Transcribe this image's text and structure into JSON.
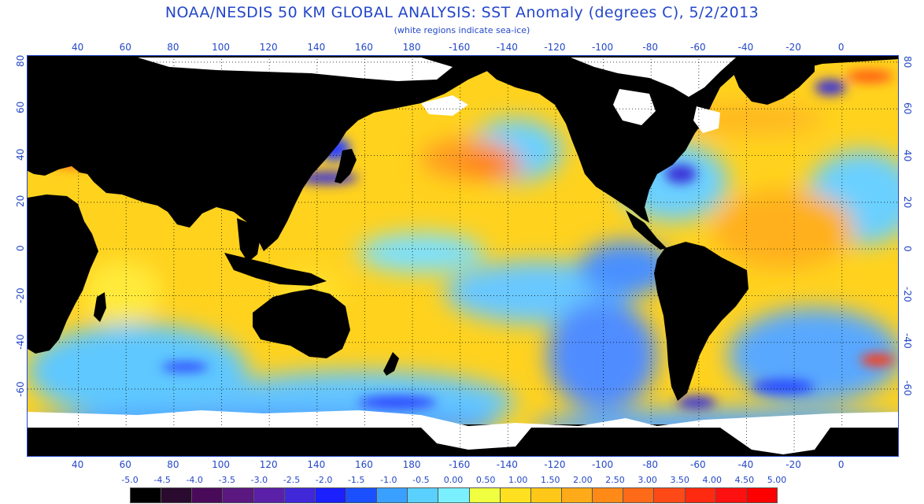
{
  "header": {
    "title": "NOAA/NESDIS 50 KM GLOBAL ANALYSIS: SST Anomaly (degrees C), 5/2/2013",
    "subtitle": "(white regions indicate sea-ice)"
  },
  "map": {
    "longitude_ticks": [
      "40",
      "60",
      "80",
      "100",
      "120",
      "140",
      "160",
      "180",
      "-160",
      "-140",
      "-120",
      "-100",
      "-80",
      "-60",
      "-40",
      "-20",
      "0"
    ],
    "latitude_ticks": [
      "80",
      "60",
      "40",
      "20",
      "0",
      "-20",
      "-40",
      "-60"
    ],
    "land_color": "#000000",
    "sea_ice_color": "#ffffff",
    "graticule": "dotted"
  },
  "legend": {
    "labels": [
      "-5.0",
      "-4.5",
      "-4.0",
      "-3.5",
      "-3.0",
      "-2.5",
      "-2.0",
      "-1.5",
      "-1.0",
      "-0.5",
      "0.00",
      "0.50",
      "1.00",
      "1.50",
      "2.00",
      "2.50",
      "3.00",
      "3.50",
      "4.00",
      "4.50",
      "5.00"
    ],
    "colors": [
      "#000000",
      "#2a0a2e",
      "#4a0a5a",
      "#5a1880",
      "#5a20a8",
      "#4028d8",
      "#1a20ff",
      "#1a50ff",
      "#3aa0ff",
      "#5ad0ff",
      "#7af0ff",
      "#f0ff40",
      "#ffe020",
      "#ffc818",
      "#ffaa18",
      "#ff8a18",
      "#ff6a18",
      "#ff4a18",
      "#ff2a10",
      "#ff1010",
      "#ff0000"
    ]
  }
}
